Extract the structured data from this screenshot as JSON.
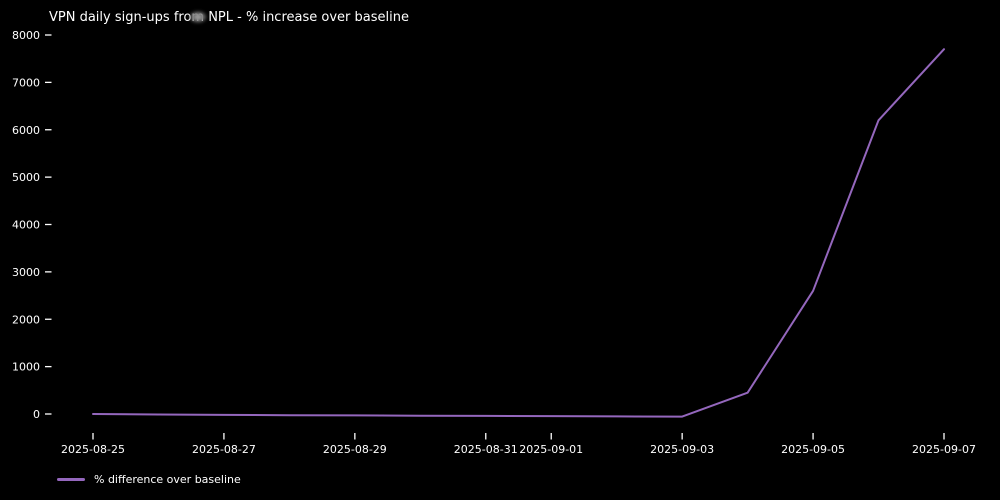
{
  "chart_data": {
    "type": "line",
    "title": "VPN daily sign-ups from NPL - % increase over baseline",
    "xlabel": "",
    "ylabel": "",
    "grid": false,
    "background_color": "#000000",
    "text_color": "#ffffff",
    "legend_position": "lower left, below x-axis",
    "x": [
      "2025-08-25",
      "2025-08-26",
      "2025-08-27",
      "2025-08-28",
      "2025-08-29",
      "2025-08-30",
      "2025-08-31",
      "2025-09-01",
      "2025-09-02",
      "2025-09-03",
      "2025-09-04",
      "2025-09-05",
      "2025-09-06",
      "2025-09-07"
    ],
    "series": [
      {
        "name": "% difference over baseline",
        "color": "#9467bd",
        "values": [
          0,
          -10,
          -20,
          -25,
          -30,
          -35,
          -40,
          -45,
          -50,
          -55,
          450,
          2600,
          6200,
          7700
        ]
      }
    ],
    "x_tick_labels": [
      "2025-08-25",
      "2025-08-27",
      "2025-08-29",
      "2025-08-31",
      "2025-09-01",
      "2025-09-03",
      "2025-09-05",
      "2025-09-07"
    ],
    "y_ticks": [
      0,
      1000,
      2000,
      3000,
      4000,
      5000,
      6000,
      7000,
      8000
    ],
    "y_tick_labels": [
      "0",
      "1000",
      "2000",
      "3000",
      "4000",
      "5000",
      "6000",
      "7000",
      "8000"
    ]
  }
}
